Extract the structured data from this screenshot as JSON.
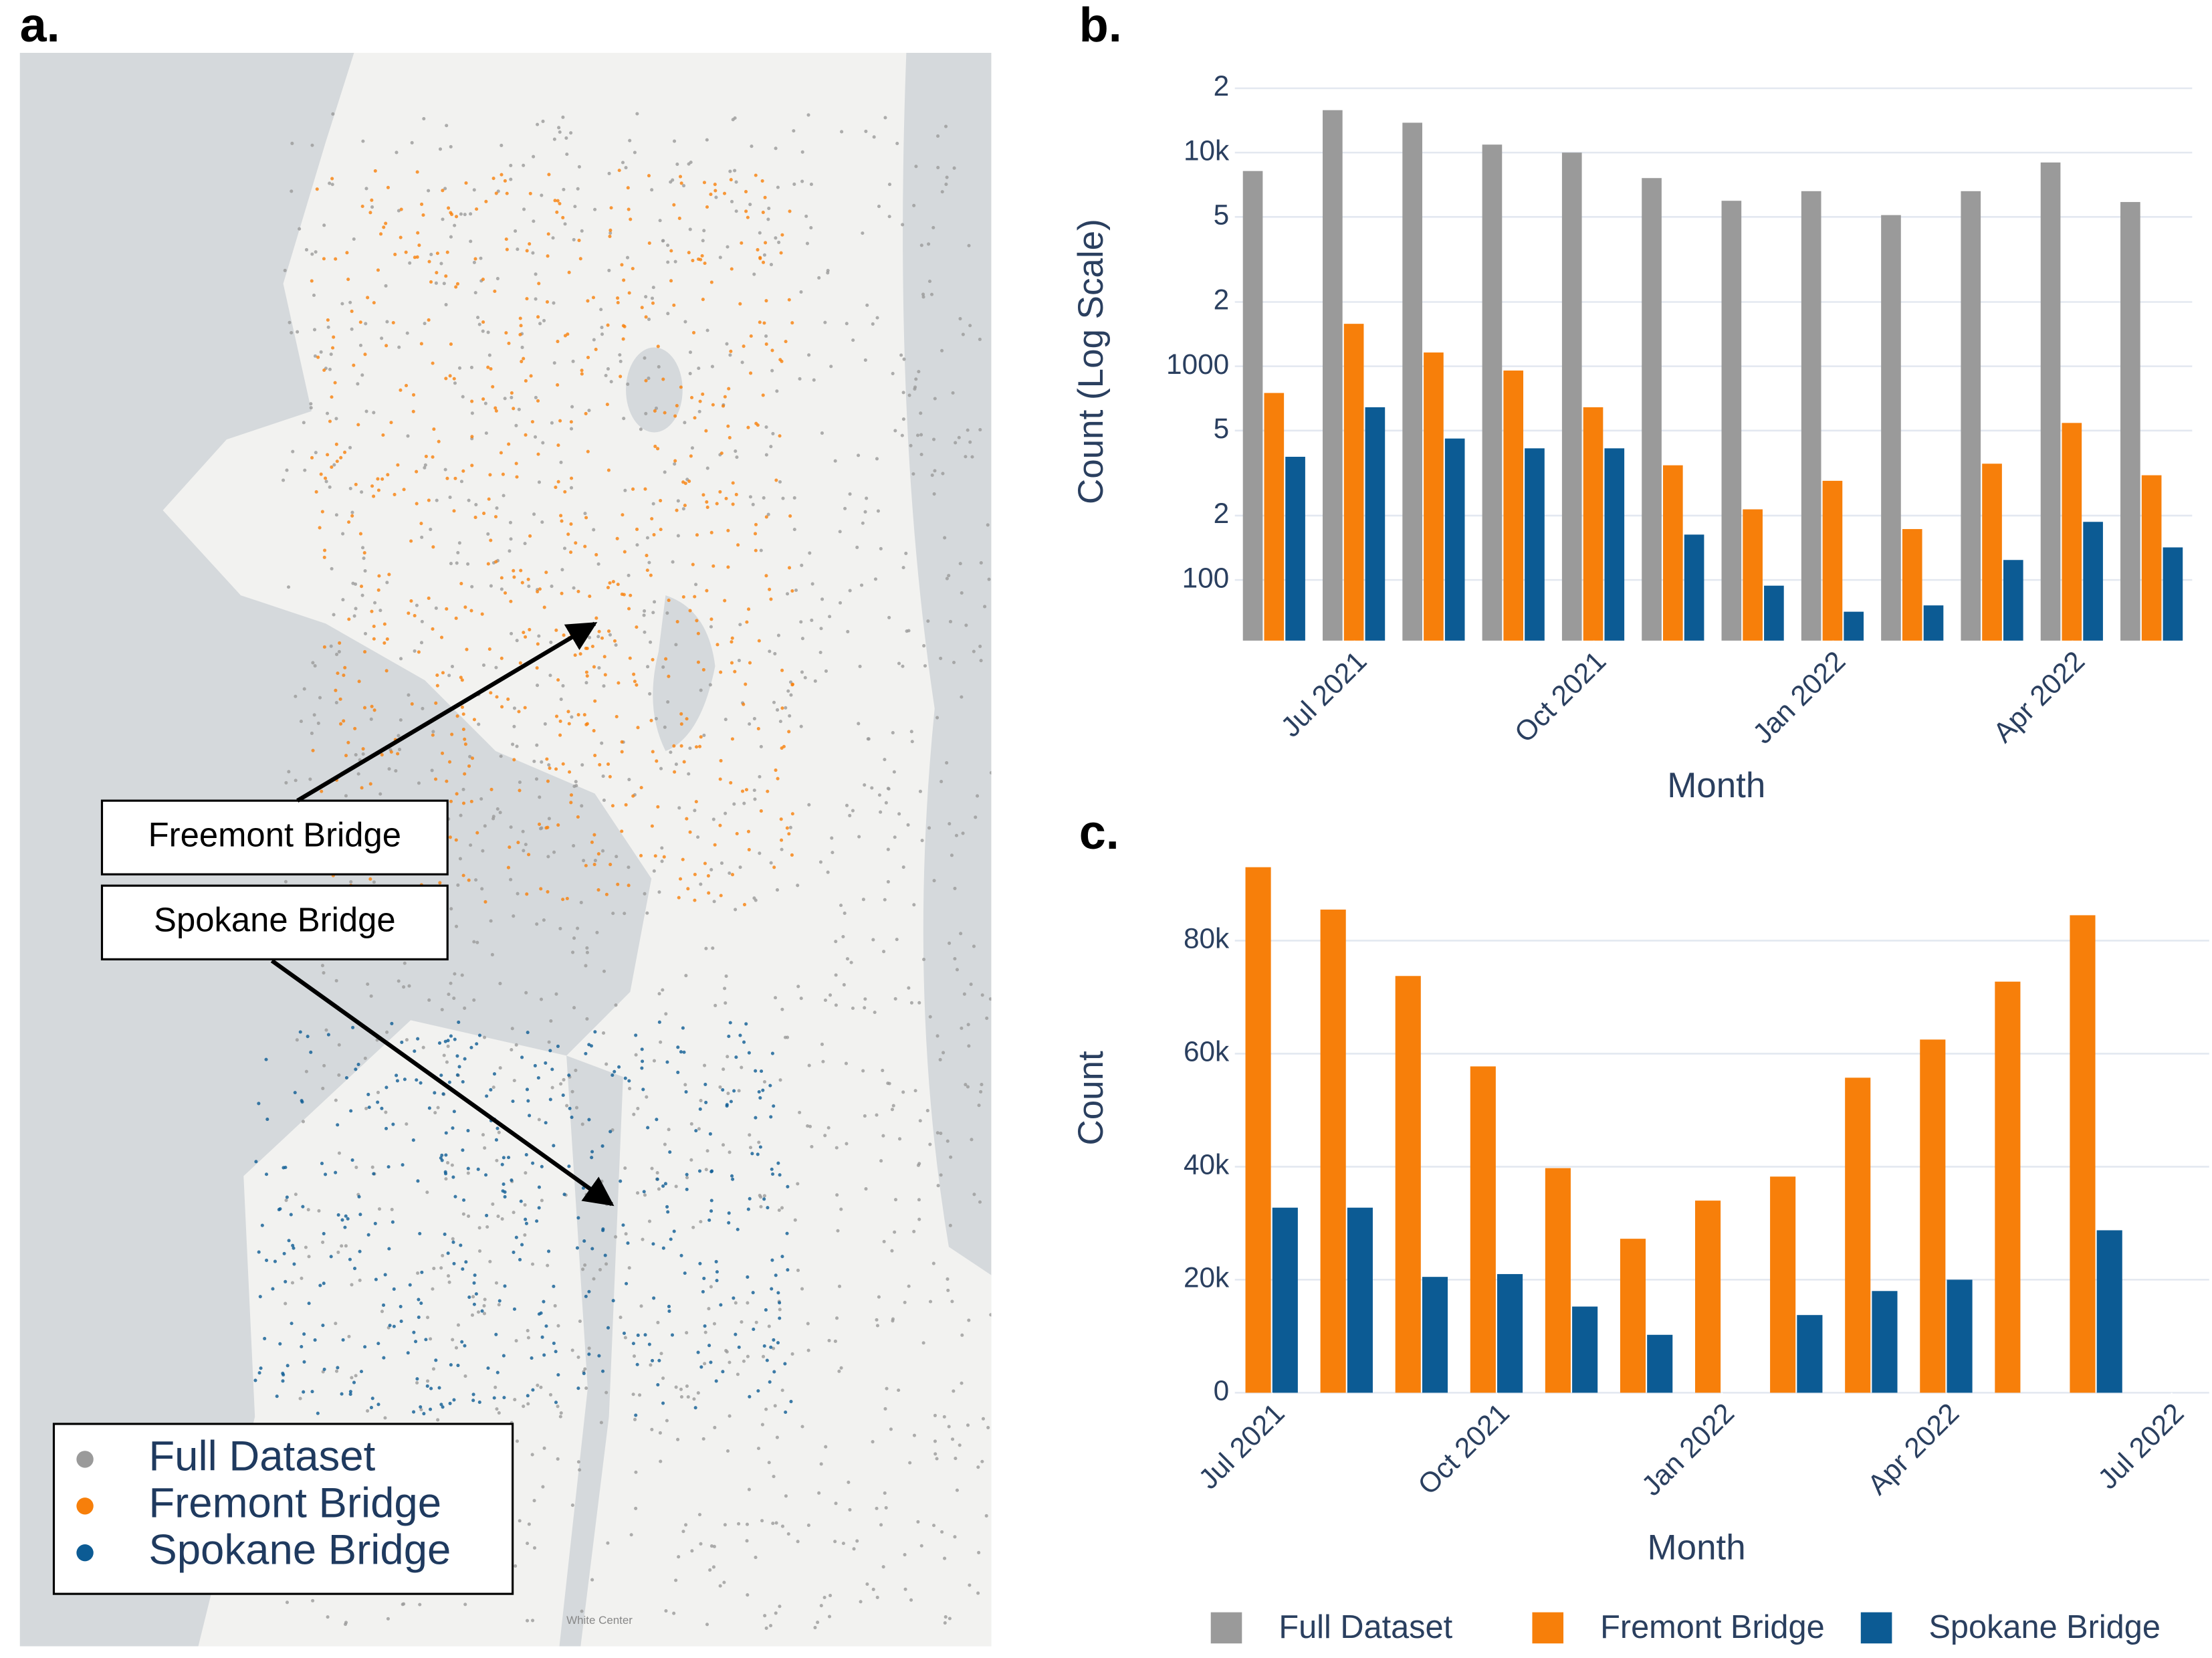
{
  "map": {
    "panel_label": "a.",
    "annotations": [
      "Freemont Bridge",
      "Spokane Bridge"
    ],
    "legend": [
      {
        "name": "Full Dataset",
        "color": "#9a9a9a"
      },
      {
        "name": "Fremont Bridge",
        "color": "#f77f0a"
      },
      {
        "name": "Spokane Bridge",
        "color": "#0c5b94"
      }
    ]
  },
  "chart_data": [
    {
      "type": "bar",
      "panel_label": "b.",
      "yscale": "log",
      "x_label": "Month",
      "y_label": "Count (Log Scale)",
      "categories": [
        null,
        "Jul 2021",
        null,
        null,
        "Oct 2021",
        null,
        null,
        "Jan 2022",
        null,
        null,
        "Apr 2022",
        null
      ],
      "ylim": [
        52,
        28000
      ],
      "yticks": [
        100,
        {
          "value": 200,
          "label": "2"
        },
        {
          "value": 500,
          "label": "5"
        },
        1000,
        {
          "value": 2000,
          "label": "2"
        },
        {
          "value": 5000,
          "label": "5"
        },
        {
          "value": 10000,
          "label": "10k"
        },
        {
          "value": 20000,
          "label": "2"
        }
      ],
      "grid": true,
      "series": [
        {
          "name": "Full Dataset",
          "color": "#9a9a9a",
          "values": [
            8200,
            15800,
            13800,
            10900,
            10000,
            7600,
            5950,
            6600,
            5100,
            6600,
            8990,
            5870
          ]
        },
        {
          "name": "Fremont Bridge",
          "color": "#f77f0a",
          "values": [
            750,
            1580,
            1160,
            955,
            643,
            344,
            214,
            291,
            173,
            350,
            543,
            309
          ]
        },
        {
          "name": "Spokane Bridge",
          "color": "#0c5b94",
          "values": [
            377,
            643,
            459,
            413,
            413,
            163,
            94,
            71,
            76,
            124,
            187,
            142
          ]
        }
      ]
    },
    {
      "type": "bar",
      "panel_label": "c.",
      "x_label": "Month",
      "y_label": "Count",
      "categories": [
        "Jul 2021",
        null,
        null,
        "Oct 2021",
        null,
        null,
        "Jan 2022",
        null,
        null,
        "Apr 2022",
        null,
        null,
        "Jul 2022"
      ],
      "ylim": [
        0,
        96000
      ],
      "yticks": [
        0,
        {
          "value": 20000,
          "label": "20k"
        },
        {
          "value": 40000,
          "label": "40k"
        },
        {
          "value": 60000,
          "label": "60k"
        },
        {
          "value": 80000,
          "label": "80k"
        }
      ],
      "grid": true,
      "series": [
        {
          "name": "Fremont Bridge",
          "color": "#f77f0a",
          "values": [
            93000,
            85500,
            73750,
            57750,
            39750,
            27250,
            34000,
            38250,
            55750,
            62500,
            72750,
            84500,
            null
          ]
        },
        {
          "name": "Spokane Bridge",
          "color": "#0c5b94",
          "values": [
            32750,
            32750,
            20500,
            21000,
            15250,
            10250,
            null,
            13750,
            18000,
            20000,
            null,
            28750,
            null
          ]
        }
      ]
    }
  ]
}
